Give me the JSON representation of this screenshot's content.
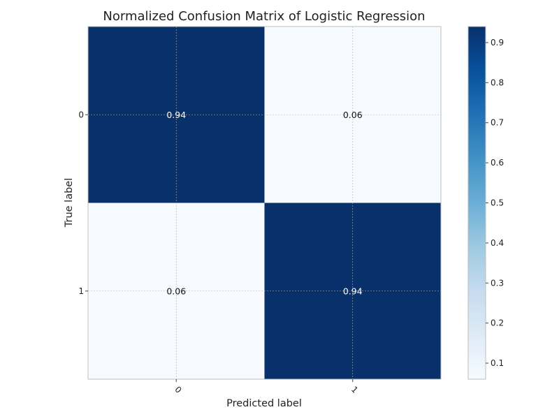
{
  "chart_data": {
    "type": "heatmap",
    "title": "Normalized Confusion Matrix  of Logistic Regression",
    "xlabel": "Predicted label",
    "ylabel": "True label",
    "x_categories": [
      "0",
      "1"
    ],
    "y_categories": [
      "0",
      "1"
    ],
    "values": [
      [
        0.94,
        0.06
      ],
      [
        0.06,
        0.94
      ]
    ],
    "value_labels": [
      [
        "0.94",
        "0.06"
      ],
      [
        "0.06",
        "0.94"
      ]
    ],
    "colormap": "Blues",
    "colorbar": {
      "range": [
        0.06,
        0.94
      ],
      "ticks": [
        0.1,
        0.2,
        0.3,
        0.4,
        0.5,
        0.6,
        0.7,
        0.8,
        0.9
      ],
      "tick_labels": [
        "0.1",
        "0.2",
        "0.3",
        "0.4",
        "0.5",
        "0.6",
        "0.7",
        "0.8",
        "0.9"
      ]
    },
    "grid": true,
    "x_tick_rotation": "45 degrees"
  }
}
